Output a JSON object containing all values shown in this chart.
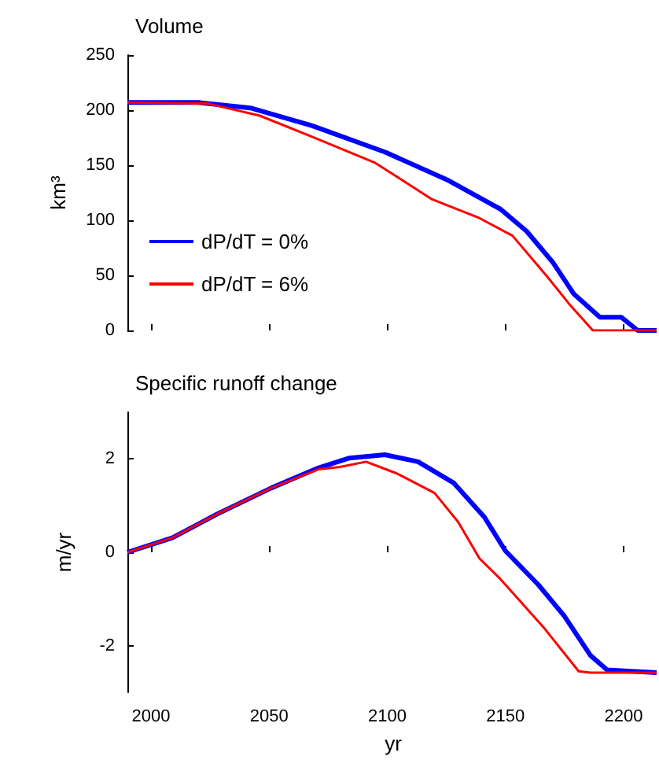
{
  "chart_data": [
    {
      "type": "line",
      "title": "Volume",
      "ylabel": "km³",
      "xlim": [
        1990,
        2215
      ],
      "xticks": [
        2000,
        2050,
        2100,
        2150,
        2200
      ],
      "ylim": [
        0,
        250
      ],
      "yticks": [
        0,
        50,
        100,
        150,
        200,
        250
      ],
      "tick_labels": "y",
      "legend": "bottom left",
      "marker": "none",
      "line_style": "solid",
      "series": [
        {
          "name": "dP/dT = 0%",
          "color": "#0000ff",
          "x": [
            1990,
            2020,
            2042,
            2068,
            2099,
            2126,
            2148,
            2159,
            2170,
            2179,
            2190,
            2199,
            2206,
            2214
          ],
          "values": [
            207,
            207,
            202,
            186,
            162,
            136,
            110,
            90,
            62,
            33,
            12,
            12,
            0,
            0
          ]
        },
        {
          "name": "dP/dT = 6%",
          "color": "#ff0000",
          "x": [
            1990,
            2024,
            2046,
            2068,
            2095,
            2119,
            2139,
            2153,
            2168,
            2177,
            2187,
            2214
          ],
          "values": [
            207,
            206,
            195,
            176,
            152,
            119,
            102,
            86,
            48,
            24,
            0,
            0
          ]
        }
      ]
    },
    {
      "type": "line",
      "title": "Specific runoff change",
      "xlabel": "yr",
      "ylabel": "m/yr",
      "xlim": [
        1990,
        2215
      ],
      "xticks": [
        2000,
        2050,
        2100,
        2150,
        2200
      ],
      "ylim": [
        -3,
        3
      ],
      "yticks": [
        -2,
        0,
        2
      ],
      "marker": "none",
      "line_style": "solid",
      "series": [
        {
          "color": "#0000ff",
          "x": [
            1990,
            2009,
            2028,
            2051,
            2071,
            2084,
            2099,
            2113,
            2128,
            2141,
            2150,
            2164,
            2175,
            2186,
            2193,
            2214
          ],
          "values": [
            0,
            0.31,
            0.82,
            1.38,
            1.81,
            2.02,
            2.09,
            1.94,
            1.49,
            0.76,
            0.03,
            -0.7,
            -1.37,
            -2.21,
            -2.52,
            -2.58
          ]
        },
        {
          "color": "#ff0000",
          "x": [
            1990,
            2009,
            2028,
            2051,
            2071,
            2080,
            2091,
            2104,
            2120,
            2130,
            2139,
            2148,
            2166,
            2181,
            2186,
            2214
          ],
          "values": [
            0,
            0.31,
            0.82,
            1.38,
            1.78,
            1.83,
            1.94,
            1.69,
            1.27,
            0.65,
            -0.13,
            -0.58,
            -1.6,
            -2.55,
            -2.58,
            -2.58
          ]
        }
      ]
    }
  ]
}
